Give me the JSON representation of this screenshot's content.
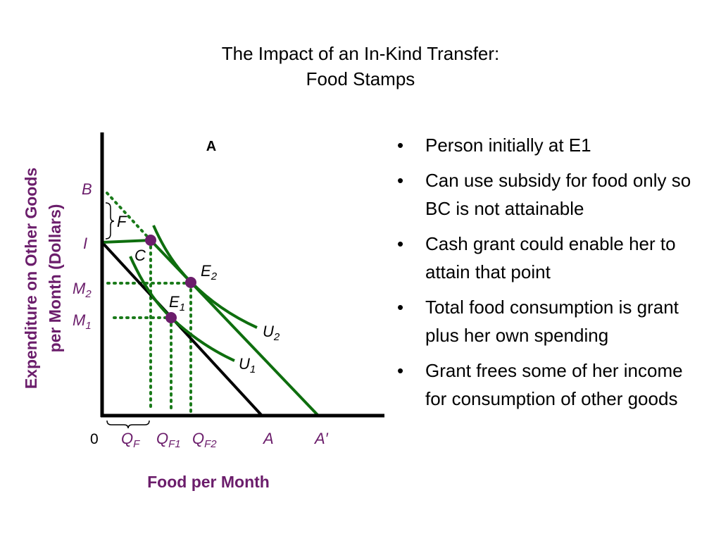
{
  "title": {
    "lines": [
      "The Impact of an In-Kind Transfer:",
      "Food Stamps"
    ]
  },
  "diagram": {
    "panel_label": "A",
    "y_axis_label": [
      "Expenditure on Other Goods",
      "per Month (Dollars)"
    ],
    "x_axis_label": "Food per Month",
    "labels": {
      "b": "B",
      "f": "F",
      "i": "I",
      "c": "C",
      "e2": {
        "main": "E",
        "sub": "2"
      },
      "m2": {
        "main": "M",
        "sub": "2"
      },
      "e1": {
        "main": "E",
        "sub": "1"
      },
      "m1": {
        "main": "M",
        "sub": "1"
      },
      "u2": {
        "main": "U",
        "sub": "2"
      },
      "u1": {
        "main": "U",
        "sub": "1"
      },
      "origin": "0",
      "qf": {
        "main": "Q",
        "sub": "F"
      },
      "qf1": {
        "main": "Q",
        "sub": "F1"
      },
      "qf2": {
        "main": "Q",
        "sub": "F2"
      },
      "a": "A",
      "a_prime": "A′"
    }
  },
  "bullets": [
    "Person initially at E1",
    "Can use subsidy for food only so BC is not attainable",
    "Cash grant could enable her to attain that point",
    "Total food consumption is grant plus her own spending",
    "Grant frees some of her income for consumption of other goods"
  ]
}
